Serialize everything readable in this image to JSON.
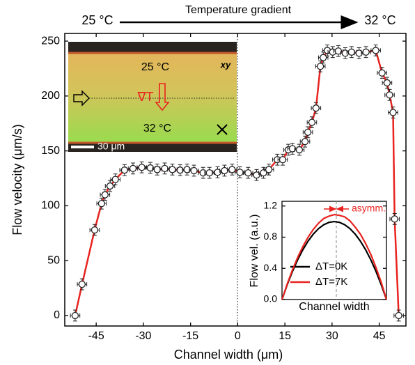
{
  "chart_data": [
    {
      "type": "scatter",
      "xlabel": "Channel width (μm)",
      "ylabel": "Flow velocity (μm/s)",
      "annotations": [
        "25 °C",
        "Temperature gradient",
        "32 °C"
      ],
      "micrograph": {
        "top_label": "25 °C",
        "view": "xy",
        "gradient": "∇T",
        "bottom_label": "32 °C",
        "scale_bar": "30 μm"
      },
      "xlim": [
        -55,
        53.5
      ],
      "ylim": [
        -9.5,
        257
      ],
      "xticks": [
        -45,
        -30,
        -15,
        0,
        15,
        30,
        45
      ],
      "yticks": [
        0,
        50,
        100,
        150,
        200,
        250
      ],
      "color": "#e8231f",
      "marker_color": "#ffffff",
      "edge_color": "#222222",
      "x_error": 1.5,
      "y_error": 5,
      "x": [
        -51.7,
        -49.5,
        -45.5,
        -43.3,
        -42.2,
        -40.6,
        -38.9,
        -36,
        -33.3,
        -30.5,
        -27.8,
        -25.6,
        -23.2,
        -20.8,
        -18.3,
        -16.1,
        -13.9,
        -11,
        -9,
        -6.4,
        -4.2,
        -1.8,
        0.7,
        3.3,
        6,
        8.2,
        9.9,
        12.6,
        14.3,
        16.1,
        17.4,
        19.6,
        21.4,
        22.3,
        23.6,
        24.9,
        26.3,
        27.2,
        28.5,
        30.2,
        32,
        34.2,
        36.2,
        38.6,
        40.8,
        43.9,
        45.9,
        47.5,
        48.3,
        49.4,
        49.9,
        51.2
      ],
      "values": [
        0,
        28.5,
        78,
        102,
        110,
        118,
        124,
        132.5,
        134,
        135,
        134.5,
        133,
        134,
        133,
        132.5,
        133,
        132,
        130,
        130,
        130.5,
        132,
        133,
        130.5,
        130,
        128,
        130,
        133,
        142,
        142,
        151,
        152,
        151,
        158.5,
        167,
        176,
        189,
        227,
        235,
        241.5,
        240,
        241,
        239,
        240,
        239,
        240,
        241.5,
        221,
        212,
        201,
        185,
        88,
        0
      ]
    },
    {
      "type": "line",
      "xlabel": "Channel width",
      "ylabel": "Flow vel. (a.u.)",
      "annotation": "asymm.",
      "peak_line_x": 0.52,
      "xlim": [
        0,
        1
      ],
      "ylim": [
        0,
        1.26
      ],
      "yticks": [
        {
          "value": 0,
          "label": "0.0"
        },
        0.4,
        0.8,
        1.2
      ],
      "x": [
        0,
        0.05,
        0.1,
        0.15,
        0.2,
        0.25,
        0.3,
        0.35,
        0.4,
        0.45,
        0.5,
        0.55,
        0.6,
        0.65,
        0.7,
        0.75,
        0.8,
        0.85,
        0.9,
        0.95,
        1
      ],
      "series": [
        {
          "name": "ΔT=0K",
          "color": "#000000",
          "values": [
            0,
            0.19,
            0.36,
            0.51,
            0.64,
            0.75,
            0.84,
            0.91,
            0.96,
            0.99,
            1,
            0.99,
            0.96,
            0.91,
            0.84,
            0.75,
            0.64,
            0.51,
            0.36,
            0.19,
            0
          ]
        },
        {
          "name": "ΔT=7K",
          "color": "#e8231f",
          "values": [
            0,
            0.2,
            0.38,
            0.54,
            0.68,
            0.8,
            0.9,
            0.98,
            1.04,
            1.07,
            1.09,
            1.08,
            1.06,
            1.01,
            0.93,
            0.84,
            0.72,
            0.58,
            0.41,
            0.22,
            0
          ]
        }
      ]
    }
  ]
}
